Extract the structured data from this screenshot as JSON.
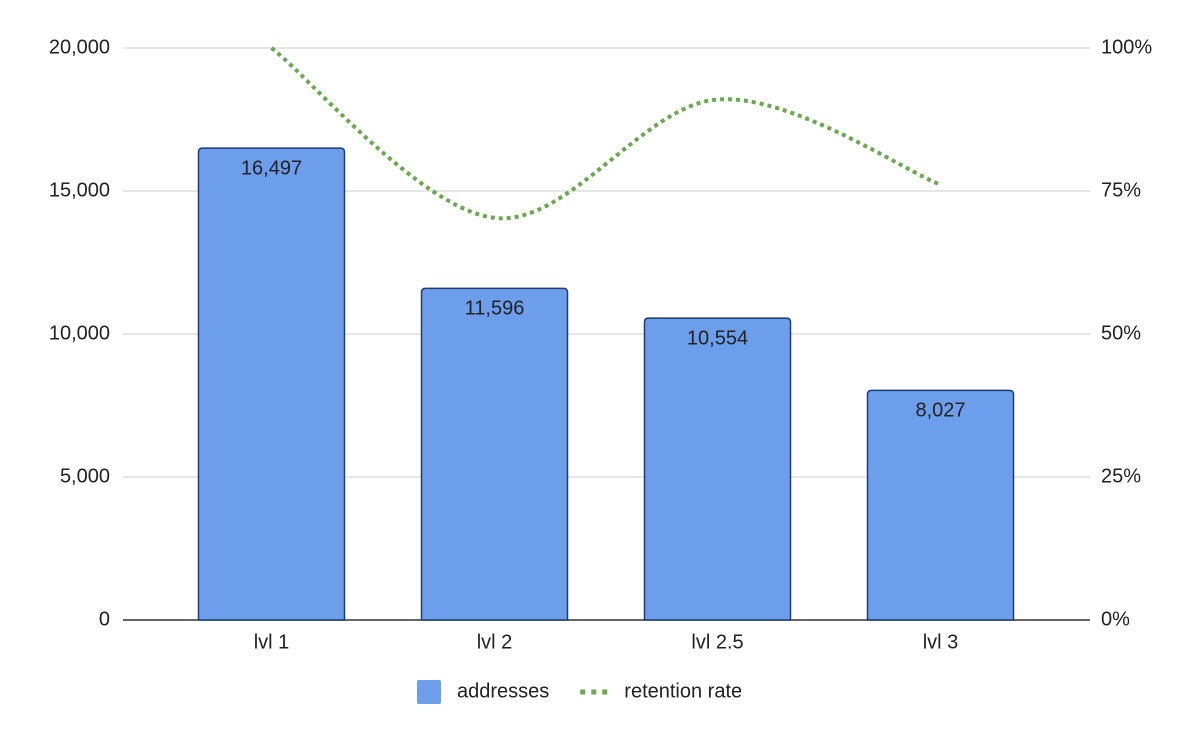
{
  "chart_data": {
    "type": "bar-line",
    "categories": [
      "lvl 1",
      "lvl 2",
      "lvl 2.5",
      "lvl 3"
    ],
    "series": [
      {
        "name": "addresses",
        "type": "bar",
        "color": "#6d9eeb",
        "values": [
          16497,
          11596,
          10554,
          8027
        ],
        "value_labels": [
          "16,497",
          "11,596",
          "10,554",
          "8,027"
        ]
      },
      {
        "name": "retention rate",
        "type": "line",
        "axis": "y2",
        "color": "#6aa84f",
        "values": [
          100,
          70.3,
          91.0,
          76.1
        ]
      }
    ],
    "ylim": [
      0,
      20000
    ],
    "yticks": [
      0,
      {
        "value": 5000,
        "label": "5,000"
      },
      {
        "value": 10000,
        "label": "10,000"
      },
      {
        "value": 15000,
        "label": "15,000"
      },
      {
        "value": 20000,
        "label": "20,000"
      }
    ],
    "y2lim": [
      0,
      100
    ],
    "y2ticks": [
      {
        "value": 0,
        "label": "0%"
      },
      {
        "value": 25,
        "label": "25%"
      },
      {
        "value": 50,
        "label": "50%"
      },
      {
        "value": 75,
        "label": "75%"
      },
      {
        "value": 100,
        "label": "100%"
      }
    ],
    "grid": true,
    "legend": "bottom"
  }
}
